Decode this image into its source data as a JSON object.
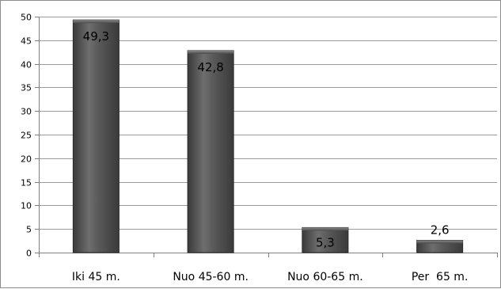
{
  "chart_data": {
    "type": "bar",
    "categories": [
      "Iki 45 m.",
      "Nuo 45-60 m.",
      "Nuo 60-65 m.",
      "Per  65 m."
    ],
    "values": [
      49.3,
      42.8,
      5.3,
      2.6
    ],
    "data_labels": [
      "49,3",
      "42,8",
      "5,3",
      "2,6"
    ],
    "yticks": [
      0,
      5,
      10,
      15,
      20,
      25,
      30,
      35,
      40,
      45,
      50
    ],
    "ylim": [
      0,
      50
    ],
    "grid": true,
    "bar_color": "#4a4a4a",
    "bar_highlight": "#7a7a7a",
    "bar_edge": "#2a2a2a",
    "grid_color": "#9a9a9a"
  }
}
